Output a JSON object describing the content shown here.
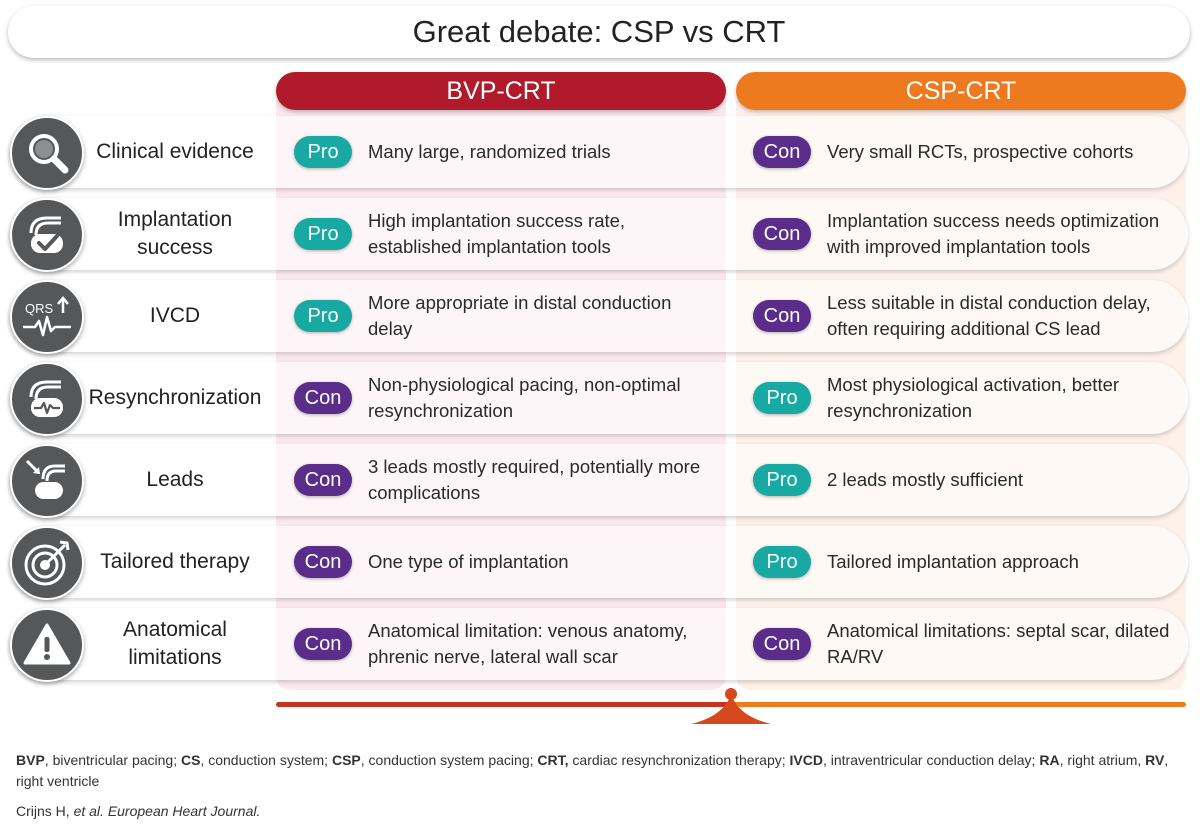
{
  "title": "Great debate: CSP vs CRT",
  "columns": {
    "left": {
      "label": "BVP-CRT",
      "color": "#b01a2a"
    },
    "right": {
      "label": "CSP-CRT",
      "color": "#ee7a1f"
    }
  },
  "colors": {
    "pro": "#18a9a2",
    "con": "#5b2d8a",
    "icon_bg": "#555759"
  },
  "rows": [
    {
      "label": "Clinical evidence",
      "icon": "magnifier-icon",
      "bvp": {
        "badge": "Pro",
        "text": "Many large, randomized trials"
      },
      "csp": {
        "badge": "Con",
        "text": "Very small RCTs, prospective cohorts"
      }
    },
    {
      "label": "Implantation success",
      "icon": "device-check-icon",
      "bvp": {
        "badge": "Pro",
        "text": "High implantation success rate, established implantation tools"
      },
      "csp": {
        "badge": "Con",
        "text": "Implantation success needs optimization with improved implantation tools"
      }
    },
    {
      "label": "IVCD",
      "icon": "qrs-icon",
      "icon_text": "QRS",
      "bvp": {
        "badge": "Pro",
        "text": "More appropriate in distal conduction delay"
      },
      "csp": {
        "badge": "Con",
        "text": "Less suitable in distal conduction delay, often requiring additional CS lead"
      }
    },
    {
      "label": "Resynchronization",
      "icon": "device-ecg-icon",
      "bvp": {
        "badge": "Con",
        "text": "Non-physiological pacing, non-optimal resynchronization"
      },
      "csp": {
        "badge": "Pro",
        "text": "Most physiological activation, better resynchronization"
      }
    },
    {
      "label": "Leads",
      "icon": "device-leads-icon",
      "bvp": {
        "badge": "Con",
        "text": "3 leads mostly required, potentially more complications"
      },
      "csp": {
        "badge": "Pro",
        "text": "2 leads mostly sufficient"
      }
    },
    {
      "label": "Tailored therapy",
      "icon": "target-icon",
      "bvp": {
        "badge": "Con",
        "text": "One type of implantation"
      },
      "csp": {
        "badge": "Pro",
        "text": "Tailored implantation approach"
      }
    },
    {
      "label": "Anatomical limitations",
      "icon": "warning-icon",
      "bvp": {
        "badge": "Con",
        "text": "Anatomical limitation: venous anatomy, phrenic nerve, lateral wall scar"
      },
      "csp": {
        "badge": "Con",
        "text": "Anatomical limitations: septal scar, dilated RA/RV"
      }
    }
  ],
  "footnote": [
    {
      "abbr": "BVP",
      "def": ", biventricular pacing; "
    },
    {
      "abbr": "CS",
      "def": ", conduction system; "
    },
    {
      "abbr": "CSP",
      "def": ", conduction system pacing; "
    },
    {
      "abbr": "CRT,",
      "def": " cardiac resynchronization therapy; "
    },
    {
      "abbr": "IVCD",
      "def": ", intraventricular conduction delay; "
    },
    {
      "abbr": "RA",
      "def": ", right atrium, "
    },
    {
      "abbr": "RV",
      "def": ", right ventricle"
    }
  ],
  "citation": {
    "authors": "Crijns H, ",
    "etal": "et al.",
    "journal": "European Heart Journal."
  }
}
